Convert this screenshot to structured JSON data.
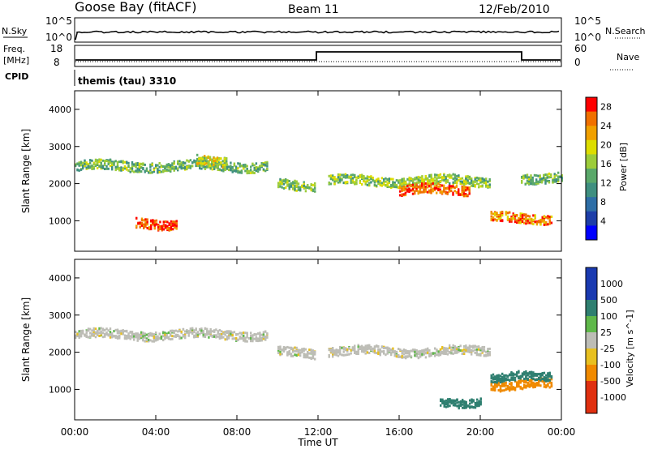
{
  "header": {
    "station": "Goose Bay (fitACF)",
    "beam": "Beam 11",
    "date": "12/Feb/2010"
  },
  "status_panels": {
    "nsky_label": "N.Sky",
    "nsky_ticks": [
      "10^5",
      "10^0"
    ],
    "nsearch_label": "N.Search",
    "nsearch_ticks": [
      "10^5",
      "10^0"
    ],
    "freq_label_1": "Freq.",
    "freq_label_2": "[MHz]",
    "freq_ticks": [
      "18",
      "8"
    ],
    "nave_label": "Nave",
    "nave_ticks": [
      "60",
      "0"
    ],
    "cpid_label": "CPID",
    "cpid_value": "themis (tau) 3310"
  },
  "axes": {
    "y_label": "Slant Range [km]",
    "y_ticks": [
      "4000",
      "3000",
      "2000",
      "1000"
    ],
    "x_label": "Time UT",
    "x_ticks": [
      "00:00",
      "04:00",
      "08:00",
      "12:00",
      "16:00",
      "20:00",
      "00:00"
    ]
  },
  "colorbars": {
    "power_label": "Power [dB]",
    "power_ticks": [
      "28",
      "24",
      "20",
      "16",
      "12",
      "8",
      "4"
    ],
    "velocity_label": "Velocity [m s^-1]",
    "velocity_ticks": [
      "1000",
      "500",
      "100",
      "25",
      "-25",
      "-100",
      "-500",
      "-1000"
    ]
  },
  "chart_data": [
    {
      "type": "heatmap",
      "title": "",
      "xlabel": "Time UT",
      "ylabel": "Slant Range [km]",
      "xlim": [
        0,
        24
      ],
      "ylim": [
        180,
        4500
      ],
      "color_scale": "Power [dB]",
      "color_range": [
        0,
        30
      ],
      "features": [
        {
          "t_start": 0,
          "t_end": 9.5,
          "range_km": 2500,
          "power_db": 14
        },
        {
          "t_start": 6.0,
          "t_end": 7.5,
          "range_km": 2650,
          "power_db": 18
        },
        {
          "t_start": 10.0,
          "t_end": 11.8,
          "range_km": 2000,
          "power_db": 16
        },
        {
          "t_start": 12.5,
          "t_end": 20.5,
          "range_km": 2100,
          "power_db": 16
        },
        {
          "t_start": 16.0,
          "t_end": 19.5,
          "range_km": 1850,
          "power_db": 26
        },
        {
          "t_start": 3.0,
          "t_end": 5.0,
          "range_km": 950,
          "power_db": 28
        },
        {
          "t_start": 20.5,
          "t_end": 23.5,
          "range_km": 1100,
          "power_db": 24
        },
        {
          "t_start": 22.0,
          "t_end": 24.0,
          "range_km": 2200,
          "power_db": 14
        }
      ]
    },
    {
      "type": "heatmap",
      "title": "",
      "xlabel": "Time UT",
      "ylabel": "Slant Range [km]",
      "xlim": [
        0,
        24
      ],
      "ylim": [
        180,
        4500
      ],
      "color_scale": "Velocity [m s^-1]",
      "color_range": [
        -1000,
        1000
      ],
      "features": [
        {
          "t_start": 0,
          "t_end": 9.5,
          "range_km": 2500,
          "velocity_ms": 0
        },
        {
          "t_start": 10.0,
          "t_end": 11.8,
          "range_km": 2000,
          "velocity_ms": 0
        },
        {
          "t_start": 12.5,
          "t_end": 20.5,
          "range_km": 2050,
          "velocity_ms": 0
        },
        {
          "t_start": 20.5,
          "t_end": 23.5,
          "range_km": 1150,
          "velocity_ms": -300
        },
        {
          "t_start": 20.5,
          "t_end": 23.5,
          "range_km": 1350,
          "velocity_ms": 150
        },
        {
          "t_start": 18.0,
          "t_end": 20.0,
          "range_km": 700,
          "velocity_ms": 150
        }
      ]
    }
  ]
}
